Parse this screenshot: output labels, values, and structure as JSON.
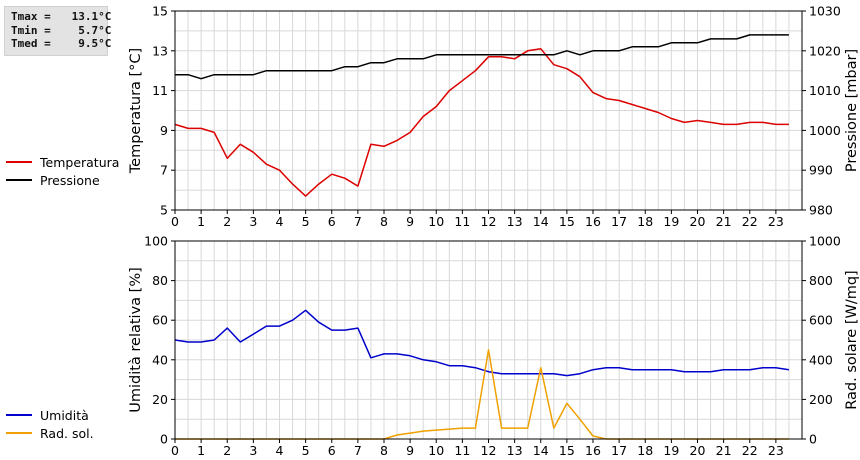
{
  "stats": {
    "tmax_label": "Tmax =",
    "tmax": "13.1°C",
    "tmin_label": "Tmin =",
    "tmin": "5.7°C",
    "tmed_label": "Tmed =",
    "tmed": "9.5°C"
  },
  "colors": {
    "temperature": "#dd0000",
    "pressure": "#000000",
    "humidity": "#0000cc",
    "radiation": "#f0a000",
    "grid": "#d8d8d8"
  },
  "chart_data": [
    {
      "type": "line",
      "xlabel": "",
      "ylabel": "Temperatura [°C]",
      "y2label": "Pressione [mbar]",
      "xlim": [
        0,
        24
      ],
      "ylim": [
        5,
        15
      ],
      "y2lim": [
        980,
        1030
      ],
      "xticks": [
        0,
        1,
        2,
        3,
        4,
        5,
        6,
        7,
        8,
        9,
        10,
        11,
        12,
        13,
        14,
        15,
        16,
        17,
        18,
        19,
        20,
        21,
        22,
        23
      ],
      "yticks": [
        5,
        7,
        9,
        11,
        13,
        15
      ],
      "y2ticks": [
        980,
        990,
        1000,
        1010,
        1020,
        1030
      ],
      "grid": true,
      "legend_position": "left",
      "series": [
        {
          "name": "Temperatura",
          "axis": "left",
          "x": [
            0,
            0.5,
            1,
            1.5,
            2,
            2.5,
            3,
            3.5,
            4,
            4.5,
            5,
            5.5,
            6,
            6.5,
            7,
            7.5,
            8,
            8.5,
            9,
            9.5,
            10,
            10.5,
            11,
            11.5,
            12,
            12.5,
            13,
            13.5,
            14,
            14.5,
            15,
            15.5,
            16,
            16.5,
            17,
            17.5,
            18,
            18.5,
            19,
            19.5,
            20,
            20.5,
            21,
            21.5,
            22,
            22.5,
            23,
            23.5
          ],
          "y": [
            9.3,
            9.1,
            9.1,
            8.9,
            7.6,
            8.3,
            7.9,
            7.3,
            7.0,
            6.3,
            5.7,
            6.3,
            6.8,
            6.6,
            6.2,
            8.3,
            8.2,
            8.5,
            8.9,
            9.7,
            10.2,
            11.0,
            11.5,
            12.0,
            12.7,
            12.7,
            12.6,
            13.0,
            13.1,
            12.3,
            12.1,
            11.7,
            10.9,
            10.6,
            10.5,
            10.3,
            10.1,
            9.9,
            9.6,
            9.4,
            9.5,
            9.4,
            9.3,
            9.3,
            9.4,
            9.4,
            9.3,
            9.3
          ]
        },
        {
          "name": "Pressione",
          "axis": "right",
          "x": [
            0,
            0.5,
            1,
            1.5,
            2,
            2.5,
            3,
            3.5,
            4,
            4.5,
            5,
            5.5,
            6,
            6.5,
            7,
            7.5,
            8,
            8.5,
            9,
            9.5,
            10,
            10.5,
            11,
            11.5,
            12,
            12.5,
            13,
            13.5,
            14,
            14.5,
            15,
            15.5,
            16,
            16.5,
            17,
            17.5,
            18,
            18.5,
            19,
            19.5,
            20,
            20.5,
            21,
            21.5,
            22,
            22.5,
            23,
            23.5
          ],
          "y": [
            1014,
            1014,
            1013,
            1014,
            1014,
            1014,
            1014,
            1015,
            1015,
            1015,
            1015,
            1015,
            1015,
            1016,
            1016,
            1017,
            1017,
            1018,
            1018,
            1018,
            1019,
            1019,
            1019,
            1019,
            1019,
            1019,
            1019,
            1019,
            1019,
            1019,
            1020,
            1019,
            1020,
            1020,
            1020,
            1021,
            1021,
            1021,
            1022,
            1022,
            1022,
            1023,
            1023,
            1023,
            1024,
            1024,
            1024,
            1024
          ]
        }
      ]
    },
    {
      "type": "line",
      "xlabel": "",
      "ylabel": "Umidità relativa [%]",
      "y2label": "Rad. solare [W/mq]",
      "xlim": [
        0,
        24
      ],
      "ylim": [
        0,
        100
      ],
      "y2lim": [
        0,
        1000
      ],
      "xticks": [
        0,
        1,
        2,
        3,
        4,
        5,
        6,
        7,
        8,
        9,
        10,
        11,
        12,
        13,
        14,
        15,
        16,
        17,
        18,
        19,
        20,
        21,
        22,
        23
      ],
      "yticks": [
        0,
        20,
        40,
        60,
        80,
        100
      ],
      "y2ticks": [
        0,
        200,
        400,
        600,
        800,
        1000
      ],
      "grid": true,
      "legend_position": "left",
      "series": [
        {
          "name": "Umidità",
          "axis": "left",
          "x": [
            0,
            0.5,
            1,
            1.5,
            2,
            2.5,
            3,
            3.5,
            4,
            4.5,
            5,
            5.5,
            6,
            6.5,
            7,
            7.5,
            8,
            8.5,
            9,
            9.5,
            10,
            10.5,
            11,
            11.5,
            12,
            12.5,
            13,
            13.5,
            14,
            14.5,
            15,
            15.5,
            16,
            16.5,
            17,
            17.5,
            18,
            18.5,
            19,
            19.5,
            20,
            20.5,
            21,
            21.5,
            22,
            22.5,
            23,
            23.5
          ],
          "y": [
            50,
            49,
            49,
            50,
            56,
            49,
            53,
            57,
            57,
            60,
            65,
            59,
            55,
            55,
            56,
            41,
            43,
            43,
            42,
            40,
            39,
            37,
            37,
            36,
            34,
            33,
            33,
            33,
            33,
            33,
            32,
            33,
            35,
            36,
            36,
            35,
            35,
            35,
            35,
            34,
            34,
            34,
            35,
            35,
            35,
            36,
            36,
            35
          ]
        },
        {
          "name": "Rad. sol.",
          "axis": "right",
          "x": [
            0,
            0.5,
            1,
            1.5,
            2,
            2.5,
            3,
            3.5,
            4,
            4.5,
            5,
            5.5,
            6,
            6.5,
            7,
            7.5,
            8,
            8.5,
            9,
            9.5,
            10,
            10.5,
            11,
            11.5,
            12,
            12.5,
            13,
            13.5,
            14,
            14.5,
            15,
            15.5,
            16,
            16.5,
            17,
            17.5,
            18,
            18.5,
            19,
            19.5,
            20,
            20.5,
            21,
            21.5,
            22,
            22.5,
            23,
            23.5
          ],
          "y": [
            0,
            0,
            0,
            0,
            0,
            0,
            0,
            0,
            0,
            0,
            0,
            0,
            0,
            0,
            0,
            0,
            0,
            20,
            30,
            40,
            45,
            50,
            55,
            55,
            450,
            55,
            55,
            55,
            360,
            55,
            180,
            100,
            15,
            0,
            0,
            0,
            0,
            0,
            0,
            0,
            0,
            0,
            0,
            0,
            0,
            0,
            0,
            0
          ]
        }
      ]
    }
  ]
}
